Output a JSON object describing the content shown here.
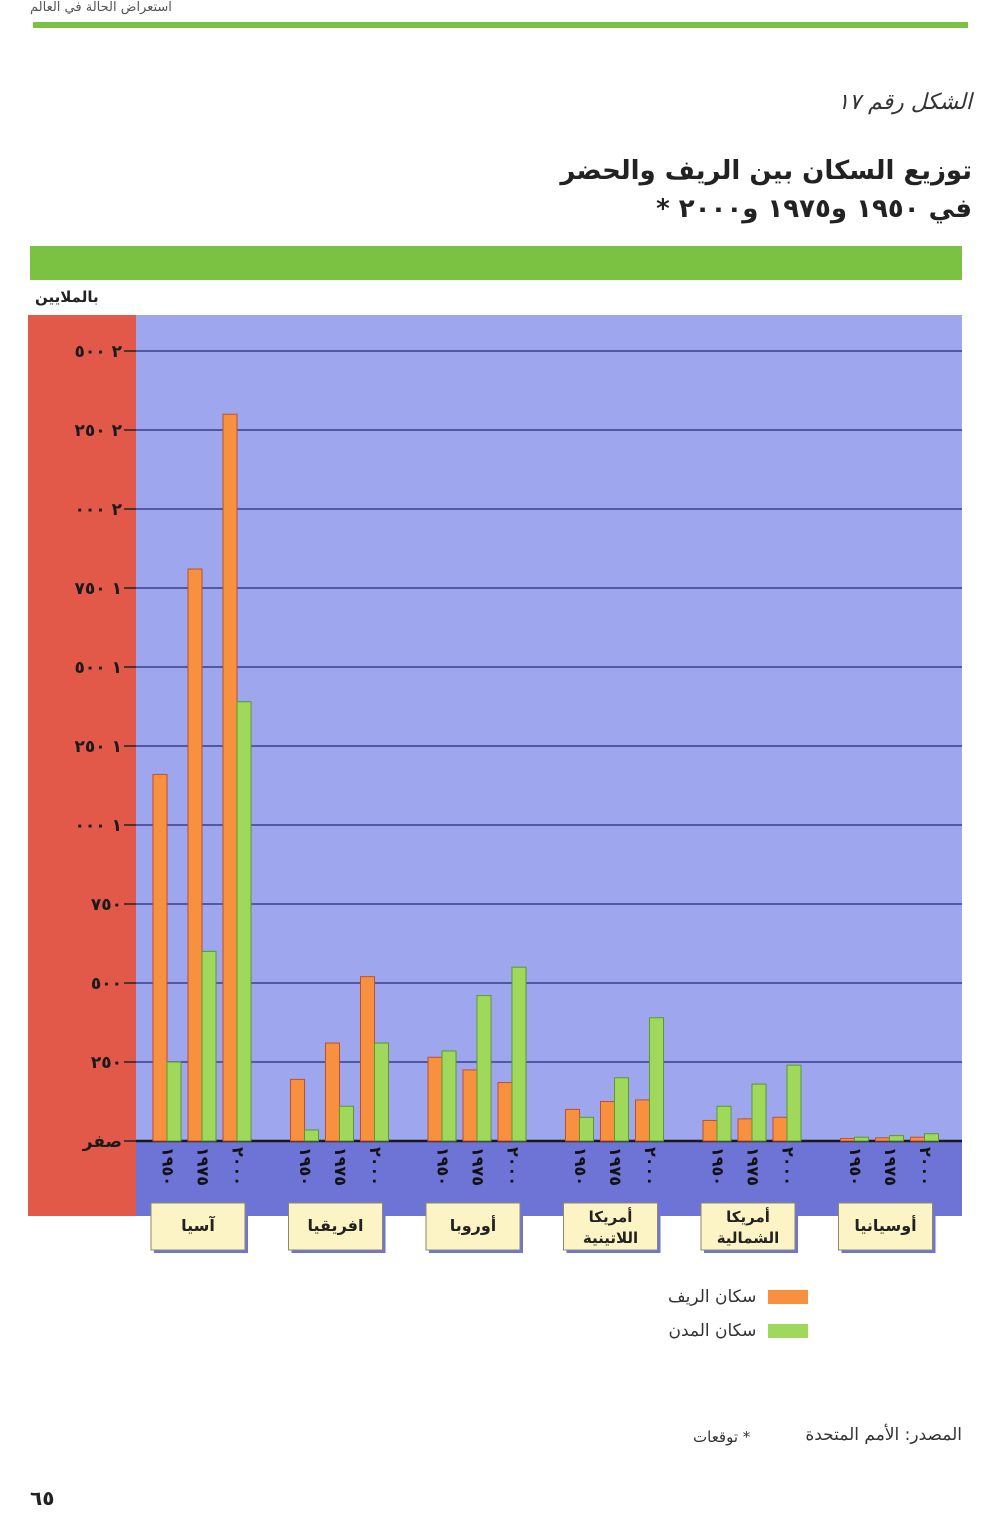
{
  "page": {
    "running_header": "استعراض الحالة في العالم",
    "figure_label": "الشكل رقم ١٧",
    "title_line1": "توزيع السكان بين الريف والحضر",
    "title_line2": "في ١٩٥٠ و١٩٧٥ و٢٠٠٠ *",
    "unit": "بالملايين",
    "source": "المصدر: الأمم المتحدة",
    "footnote": "* توقعات",
    "page_number": "٦٥"
  },
  "legend": {
    "rural": "سكان الريف",
    "urban": "سكان المدن"
  },
  "colors": {
    "rural": "#f7913f",
    "urban": "#9fd85a",
    "plot_bg": "#9ea6ee",
    "axis_panel": "#e2594a",
    "year_strip": "#6d74d6",
    "grid": "#3b3f8c",
    "label_box": "#fdf4c6"
  },
  "chart_data": {
    "type": "bar",
    "ylabel": "بالملايين",
    "ylim": [
      0,
      2500
    ],
    "y_ticks": [
      0,
      250,
      500,
      750,
      1000,
      1250,
      1500,
      1750,
      2000,
      2250,
      2500
    ],
    "y_tick_labels": [
      "صفر",
      "٢٥٠",
      "٥٠٠",
      "٧٥٠",
      "١ ٠٠٠",
      "١ ٢٥٠",
      "١ ٥٠٠",
      "١ ٧٥٠",
      "٢ ٠٠٠",
      "٢ ٢٥٠",
      "٢ ٥٠٠"
    ],
    "years": [
      "١٩٥٠",
      "١٩٧٥",
      "٢٠٠٠"
    ],
    "categories": [
      "آسيا",
      "افريقيا",
      "أوروبا",
      "أمريكا اللاتينية",
      "أمريكا الشمالية",
      "أوسيانيا"
    ],
    "category_lines": [
      [
        "آسيا"
      ],
      [
        "افريقيا"
      ],
      [
        "أوروبا"
      ],
      [
        "أمريكا",
        "اللاتينية"
      ],
      [
        "أمريكا",
        "الشمالية"
      ],
      [
        "أوسيانيا"
      ]
    ],
    "series": [
      {
        "name": "سكان الريف",
        "values": [
          [
            1160,
            1810,
            2300
          ],
          [
            195,
            310,
            520
          ],
          [
            265,
            225,
            185
          ],
          [
            100,
            125,
            130
          ],
          [
            65,
            70,
            75
          ],
          [
            8,
            10,
            12
          ]
        ]
      },
      {
        "name": "سكان المدن",
        "values": [
          [
            250,
            600,
            1390
          ],
          [
            35,
            110,
            310
          ],
          [
            285,
            460,
            550
          ],
          [
            75,
            200,
            390
          ],
          [
            110,
            180,
            240
          ],
          [
            12,
            17,
            23
          ]
        ]
      }
    ]
  }
}
